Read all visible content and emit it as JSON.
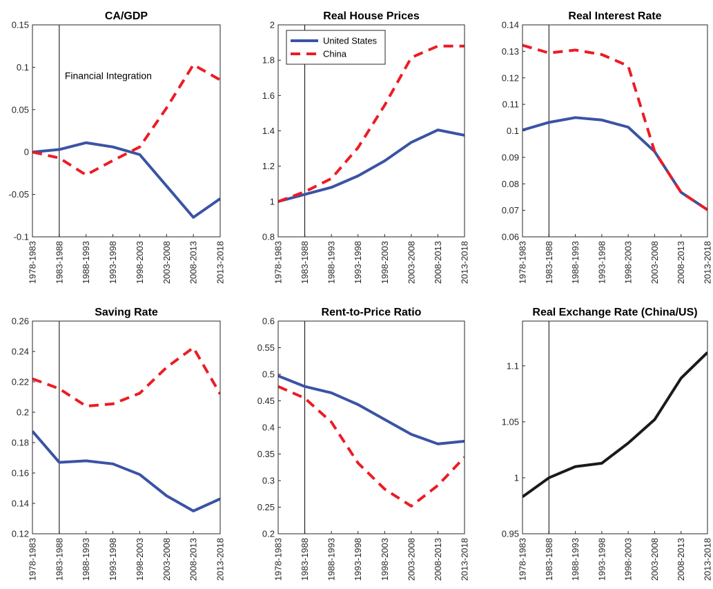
{
  "colors": {
    "united_states": "#3A53A4",
    "china": "#EC1C24",
    "real_exchange_rate": "#1A1A1A"
  },
  "legend": {
    "entries": [
      "United States",
      "China"
    ],
    "placement": "top-left"
  },
  "chart_data": [
    {
      "type": "line",
      "title": "CA/GDP",
      "categories": [
        "1978-1983",
        "1983-1988",
        "1988-1993",
        "1993-1998",
        "1998-2003",
        "2003-2008",
        "2008-2013",
        "2013-2018"
      ],
      "ylim": [
        -0.1,
        0.15
      ],
      "yticks": [
        "-0.1",
        "-0.05",
        "0",
        "0.05",
        "0.1",
        "0.15"
      ],
      "vline": "1983-1988",
      "annotation": "Financial Integration",
      "series": [
        {
          "name": "United States",
          "color": "#3A53A4",
          "dash": false,
          "values": [
            0.0,
            0.003,
            0.011,
            0.006,
            -0.003,
            -0.04,
            -0.077,
            -0.055
          ]
        },
        {
          "name": "China",
          "color": "#EC1C24",
          "dash": true,
          "values": [
            0.0,
            -0.007,
            -0.027,
            -0.01,
            0.006,
            0.052,
            0.103,
            0.085
          ]
        }
      ]
    },
    {
      "type": "line",
      "title": "Real House Prices",
      "categories": [
        "1978-1983",
        "1983-1988",
        "1988-1993",
        "1993-1998",
        "1998-2003",
        "2003-2008",
        "2008-2013",
        "2013-2018"
      ],
      "ylim": [
        0.8,
        2.0
      ],
      "yticks": [
        "0.8",
        "1",
        "1.2",
        "1.4",
        "1.6",
        "1.8",
        "2"
      ],
      "vline": "1983-1988",
      "legend": true,
      "series": [
        {
          "name": "United States",
          "color": "#3A53A4",
          "dash": false,
          "values": [
            1.0,
            1.04,
            1.08,
            1.145,
            1.23,
            1.335,
            1.405,
            1.375
          ]
        },
        {
          "name": "China",
          "color": "#EC1C24",
          "dash": true,
          "values": [
            1.0,
            1.055,
            1.13,
            1.305,
            1.545,
            1.815,
            1.88,
            1.88
          ]
        }
      ]
    },
    {
      "type": "line",
      "title": "Real Interest Rate",
      "categories": [
        "1978-1983",
        "1983-1988",
        "1988-1993",
        "1993-1998",
        "1998-2003",
        "2003-2008",
        "2008-2013",
        "2013-2018"
      ],
      "ylim": [
        0.06,
        0.14
      ],
      "yticks": [
        "0.06",
        "0.07",
        "0.08",
        "0.09",
        "0.1",
        "0.11",
        "0.12",
        "0.13",
        "0.14"
      ],
      "vline": "1983-1988",
      "series": [
        {
          "name": "United States",
          "color": "#3A53A4",
          "dash": false,
          "values": [
            0.1003,
            0.1032,
            0.105,
            0.1041,
            0.1014,
            0.0922,
            0.0768,
            0.0702
          ]
        },
        {
          "name": "China",
          "color": "#EC1C24",
          "dash": true,
          "values": [
            0.1323,
            0.1294,
            0.1305,
            0.1288,
            0.1245,
            0.0922,
            0.0768,
            0.0702
          ]
        }
      ]
    },
    {
      "type": "line",
      "title": "Saving Rate",
      "categories": [
        "1978-1983",
        "1983-1988",
        "1988-1993",
        "1993-1998",
        "1998-2003",
        "2003-2008",
        "2008-2013",
        "2013-2018"
      ],
      "ylim": [
        0.12,
        0.26
      ],
      "yticks": [
        "0.12",
        "0.14",
        "0.16",
        "0.18",
        "0.2",
        "0.22",
        "0.24",
        "0.26"
      ],
      "vline": "1983-1988",
      "series": [
        {
          "name": "United States",
          "color": "#3A53A4",
          "dash": false,
          "values": [
            0.1875,
            0.167,
            0.168,
            0.166,
            0.159,
            0.145,
            0.135,
            0.143
          ]
        },
        {
          "name": "China",
          "color": "#EC1C24",
          "dash": true,
          "values": [
            0.222,
            0.2155,
            0.204,
            0.2055,
            0.2125,
            0.2295,
            0.2425,
            0.212
          ]
        }
      ]
    },
    {
      "type": "line",
      "title": "Rent-to-Price Ratio",
      "categories": [
        "1978-1983",
        "1983-1988",
        "1988-1993",
        "1993-1998",
        "1998-2003",
        "2003-2008",
        "2008-2013",
        "2013-2018"
      ],
      "ylim": [
        0.2,
        0.6
      ],
      "yticks": [
        "0.2",
        "0.25",
        "0.3",
        "0.35",
        "0.4",
        "0.45",
        "0.5",
        "0.55",
        "0.6"
      ],
      "vline": "1983-1988",
      "series": [
        {
          "name": "United States",
          "color": "#3A53A4",
          "dash": false,
          "values": [
            0.497,
            0.477,
            0.465,
            0.443,
            0.415,
            0.387,
            0.369,
            0.374
          ]
        },
        {
          "name": "China",
          "color": "#EC1C24",
          "dash": true,
          "values": [
            0.477,
            0.455,
            0.41,
            0.333,
            0.284,
            0.252,
            0.291,
            0.344
          ]
        }
      ]
    },
    {
      "type": "line",
      "title": "Real Exchange Rate (China/US)",
      "categories": [
        "1978-1983",
        "1983-1988",
        "1988-1993",
        "1993-1998",
        "1998-2003",
        "2003-2008",
        "2008-2013",
        "2013-2018"
      ],
      "ylim": [
        0.95,
        1.14
      ],
      "yticks": [
        "0.95",
        "1",
        "1.05",
        "1.1"
      ],
      "vline": "1983-1988",
      "series": [
        {
          "color": "#1A1A1A",
          "dash": false,
          "values": [
            0.983,
            1.0,
            1.01,
            1.013,
            1.031,
            1.052,
            1.089,
            1.112
          ]
        }
      ]
    }
  ]
}
